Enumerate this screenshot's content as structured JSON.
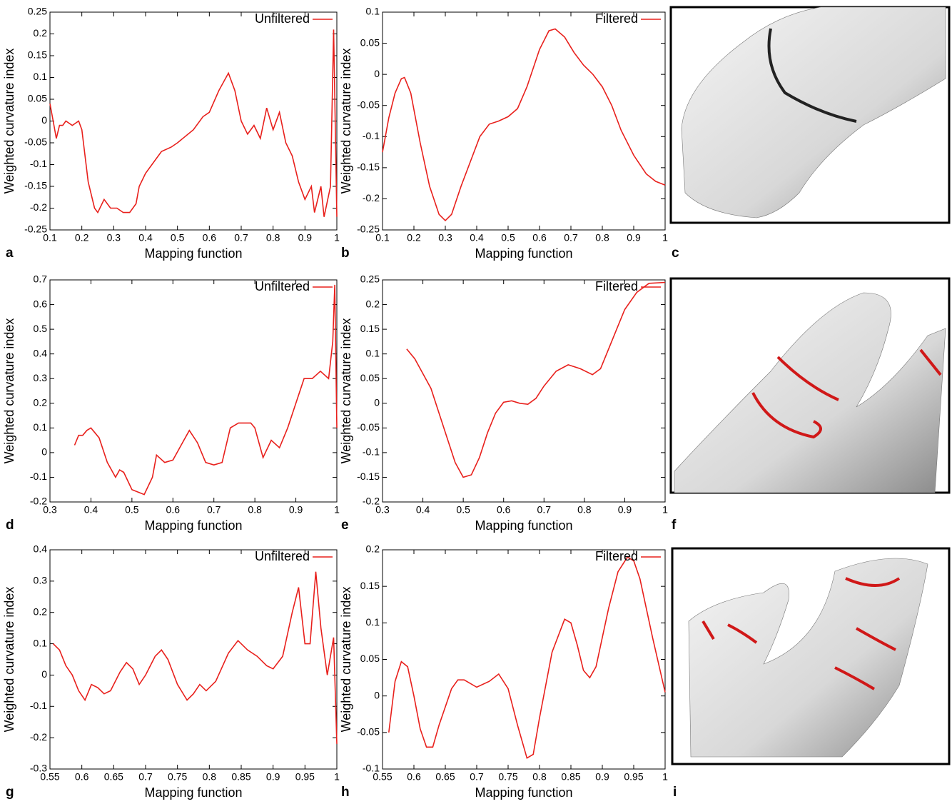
{
  "chart_data": [
    {
      "type": "line",
      "panel_label": "a",
      "xlabel": "Mapping function",
      "ylabel": "Weighted curvature index",
      "legend": "upper right",
      "xlim": [
        0.1,
        1
      ],
      "ylim": [
        -0.25,
        0.25
      ],
      "xticks": [
        0.1,
        0.2,
        0.3,
        0.4,
        0.5,
        0.6,
        0.7,
        0.8,
        0.9,
        1
      ],
      "yticks": [
        -0.25,
        -0.2,
        -0.15,
        -0.1,
        -0.05,
        0,
        0.05,
        0.1,
        0.15,
        0.2,
        0.25
      ],
      "x": [
        0.1,
        0.11,
        0.12,
        0.13,
        0.14,
        0.15,
        0.17,
        0.19,
        0.2,
        0.22,
        0.24,
        0.25,
        0.27,
        0.29,
        0.31,
        0.33,
        0.35,
        0.37,
        0.38,
        0.4,
        0.42,
        0.45,
        0.48,
        0.5,
        0.55,
        0.58,
        0.6,
        0.63,
        0.66,
        0.68,
        0.7,
        0.72,
        0.74,
        0.76,
        0.78,
        0.8,
        0.82,
        0.84,
        0.86,
        0.88,
        0.9,
        0.92,
        0.93,
        0.95,
        0.96,
        0.98,
        0.99,
        1.0
      ],
      "series": [
        {
          "name": "Unfiltered",
          "color": "#e8201c",
          "values": [
            0.04,
            0.0,
            -0.04,
            -0.01,
            -0.01,
            0.0,
            -0.01,
            0.0,
            -0.02,
            -0.14,
            -0.2,
            -0.21,
            -0.18,
            -0.2,
            -0.2,
            -0.21,
            -0.21,
            -0.19,
            -0.15,
            -0.12,
            -0.1,
            -0.07,
            -0.06,
            -0.05,
            -0.02,
            0.01,
            0.02,
            0.07,
            0.11,
            0.07,
            0.0,
            -0.03,
            -0.01,
            -0.04,
            0.03,
            -0.02,
            0.02,
            -0.05,
            -0.08,
            -0.14,
            -0.18,
            -0.15,
            -0.21,
            -0.15,
            -0.22,
            -0.15,
            0.21,
            -0.22
          ]
        }
      ]
    },
    {
      "type": "line",
      "panel_label": "b",
      "xlabel": "Mapping function",
      "ylabel": "Weighted curvature index",
      "legend": "upper right",
      "xlim": [
        0.1,
        1
      ],
      "ylim": [
        -0.25,
        0.1
      ],
      "xticks": [
        0.1,
        0.2,
        0.3,
        0.4,
        0.5,
        0.6,
        0.7,
        0.8,
        0.9,
        1
      ],
      "yticks": [
        -0.25,
        -0.2,
        -0.15,
        -0.1,
        -0.05,
        0,
        0.05,
        0.1
      ],
      "x": [
        0.1,
        0.12,
        0.14,
        0.16,
        0.17,
        0.19,
        0.22,
        0.25,
        0.28,
        0.3,
        0.32,
        0.35,
        0.38,
        0.41,
        0.44,
        0.47,
        0.5,
        0.53,
        0.56,
        0.6,
        0.63,
        0.65,
        0.68,
        0.71,
        0.74,
        0.77,
        0.8,
        0.83,
        0.86,
        0.9,
        0.94,
        0.97,
        1.0
      ],
      "series": [
        {
          "name": "Filtered",
          "color": "#e8201c",
          "values": [
            -0.125,
            -0.07,
            -0.03,
            -0.007,
            -0.005,
            -0.03,
            -0.11,
            -0.18,
            -0.225,
            -0.235,
            -0.225,
            -0.18,
            -0.14,
            -0.1,
            -0.08,
            -0.075,
            -0.068,
            -0.055,
            -0.02,
            0.04,
            0.07,
            0.073,
            0.06,
            0.035,
            0.015,
            0.0,
            -0.02,
            -0.05,
            -0.09,
            -0.13,
            -0.16,
            -0.172,
            -0.178
          ]
        }
      ]
    },
    {
      "type": "line",
      "panel_label": "d",
      "xlabel": "Mapping function",
      "ylabel": "Weighted curvature index",
      "legend": "upper right",
      "xlim": [
        0.3,
        1
      ],
      "ylim": [
        -0.2,
        0.7
      ],
      "xticks": [
        0.3,
        0.4,
        0.5,
        0.6,
        0.7,
        0.8,
        0.9,
        1
      ],
      "yticks": [
        -0.2,
        -0.1,
        0,
        0.1,
        0.2,
        0.3,
        0.4,
        0.5,
        0.6,
        0.7
      ],
      "x": [
        0.36,
        0.37,
        0.38,
        0.39,
        0.4,
        0.42,
        0.44,
        0.46,
        0.47,
        0.48,
        0.5,
        0.53,
        0.55,
        0.56,
        0.58,
        0.6,
        0.62,
        0.64,
        0.66,
        0.68,
        0.7,
        0.72,
        0.74,
        0.76,
        0.79,
        0.8,
        0.82,
        0.84,
        0.86,
        0.88,
        0.9,
        0.92,
        0.94,
        0.96,
        0.98,
        0.99,
        0.995,
        1.0
      ],
      "series": [
        {
          "name": "Unfiltered",
          "color": "#e8201c",
          "values": [
            0.03,
            0.07,
            0.07,
            0.09,
            0.1,
            0.06,
            -0.04,
            -0.1,
            -0.07,
            -0.08,
            -0.15,
            -0.17,
            -0.1,
            -0.01,
            -0.04,
            -0.03,
            0.03,
            0.09,
            0.04,
            -0.04,
            -0.05,
            -0.04,
            0.1,
            0.12,
            0.12,
            0.1,
            -0.02,
            0.05,
            0.02,
            0.1,
            0.2,
            0.3,
            0.3,
            0.33,
            0.3,
            0.45,
            0.68,
            0.1
          ]
        }
      ]
    },
    {
      "type": "line",
      "panel_label": "e",
      "xlabel": "Mapping function",
      "ylabel": "Weighted curvature index",
      "legend": "upper right",
      "xlim": [
        0.3,
        1
      ],
      "ylim": [
        -0.2,
        0.25
      ],
      "xticks": [
        0.3,
        0.4,
        0.5,
        0.6,
        0.7,
        0.8,
        0.9,
        1
      ],
      "yticks": [
        -0.2,
        -0.15,
        -0.1,
        -0.05,
        0,
        0.05,
        0.1,
        0.15,
        0.2,
        0.25
      ],
      "x": [
        0.36,
        0.38,
        0.4,
        0.42,
        0.44,
        0.46,
        0.48,
        0.5,
        0.52,
        0.54,
        0.56,
        0.58,
        0.6,
        0.62,
        0.64,
        0.66,
        0.68,
        0.7,
        0.73,
        0.76,
        0.79,
        0.82,
        0.84,
        0.86,
        0.88,
        0.9,
        0.93,
        0.96,
        1.0
      ],
      "series": [
        {
          "name": "Filtered",
          "color": "#e8201c",
          "values": [
            0.11,
            0.09,
            0.06,
            0.03,
            -0.02,
            -0.07,
            -0.12,
            -0.15,
            -0.145,
            -0.11,
            -0.06,
            -0.02,
            0.002,
            0.005,
            0.0,
            -0.002,
            0.01,
            0.035,
            0.065,
            0.078,
            0.07,
            0.058,
            0.07,
            0.11,
            0.15,
            0.19,
            0.225,
            0.243,
            0.245
          ]
        }
      ]
    },
    {
      "type": "line",
      "panel_label": "g",
      "xlabel": "Mapping function",
      "ylabel": "Weighted curvature index",
      "legend": "upper right",
      "xlim": [
        0.55,
        1
      ],
      "ylim": [
        -0.3,
        0.4
      ],
      "xticks": [
        0.55,
        0.6,
        0.65,
        0.7,
        0.75,
        0.8,
        0.85,
        0.9,
        0.95,
        1
      ],
      "yticks": [
        -0.3,
        -0.2,
        -0.1,
        0,
        0.1,
        0.2,
        0.3,
        0.4
      ],
      "x": [
        0.555,
        0.565,
        0.575,
        0.585,
        0.595,
        0.605,
        0.615,
        0.625,
        0.635,
        0.645,
        0.66,
        0.67,
        0.68,
        0.69,
        0.7,
        0.715,
        0.725,
        0.735,
        0.75,
        0.765,
        0.775,
        0.785,
        0.795,
        0.81,
        0.83,
        0.845,
        0.86,
        0.875,
        0.89,
        0.9,
        0.915,
        0.93,
        0.94,
        0.95,
        0.958,
        0.967,
        0.975,
        0.985,
        0.995,
        1.0
      ],
      "series": [
        {
          "name": "Unfiltered",
          "color": "#e8201c",
          "values": [
            0.1,
            0.08,
            0.03,
            0.0,
            -0.05,
            -0.08,
            -0.03,
            -0.04,
            -0.06,
            -0.05,
            0.01,
            0.04,
            0.02,
            -0.03,
            0.0,
            0.06,
            0.08,
            0.05,
            -0.03,
            -0.08,
            -0.06,
            -0.03,
            -0.05,
            -0.02,
            0.07,
            0.11,
            0.08,
            0.06,
            0.03,
            0.02,
            0.06,
            0.2,
            0.28,
            0.1,
            0.1,
            0.33,
            0.15,
            0.0,
            0.12,
            -0.22
          ]
        }
      ]
    },
    {
      "type": "line",
      "panel_label": "h",
      "xlabel": "Mapping function",
      "ylabel": "Weighted curvature index",
      "legend": "upper right",
      "xlim": [
        0.55,
        1
      ],
      "ylim": [
        -0.1,
        0.2
      ],
      "xticks": [
        0.55,
        0.6,
        0.65,
        0.7,
        0.75,
        0.8,
        0.85,
        0.9,
        0.95,
        1
      ],
      "yticks": [
        -0.1,
        -0.05,
        0,
        0.05,
        0.1,
        0.15,
        0.2
      ],
      "x": [
        0.56,
        0.57,
        0.58,
        0.59,
        0.6,
        0.61,
        0.62,
        0.63,
        0.64,
        0.66,
        0.67,
        0.68,
        0.7,
        0.72,
        0.735,
        0.75,
        0.765,
        0.78,
        0.79,
        0.8,
        0.82,
        0.84,
        0.85,
        0.86,
        0.87,
        0.88,
        0.89,
        0.91,
        0.925,
        0.94,
        0.95,
        0.96,
        0.98,
        1.0
      ],
      "series": [
        {
          "name": "Filtered",
          "color": "#e8201c",
          "values": [
            -0.05,
            0.02,
            0.047,
            0.04,
            0.0,
            -0.045,
            -0.07,
            -0.07,
            -0.04,
            0.01,
            0.022,
            0.022,
            0.012,
            0.02,
            0.03,
            0.01,
            -0.04,
            -0.085,
            -0.08,
            -0.03,
            0.06,
            0.105,
            0.1,
            0.07,
            0.035,
            0.025,
            0.04,
            0.12,
            0.17,
            0.19,
            0.185,
            0.16,
            0.08,
            0.005
          ]
        }
      ]
    }
  ],
  "images": [
    {
      "panel_label": "c"
    },
    {
      "panel_label": "f"
    },
    {
      "panel_label": "i"
    }
  ]
}
